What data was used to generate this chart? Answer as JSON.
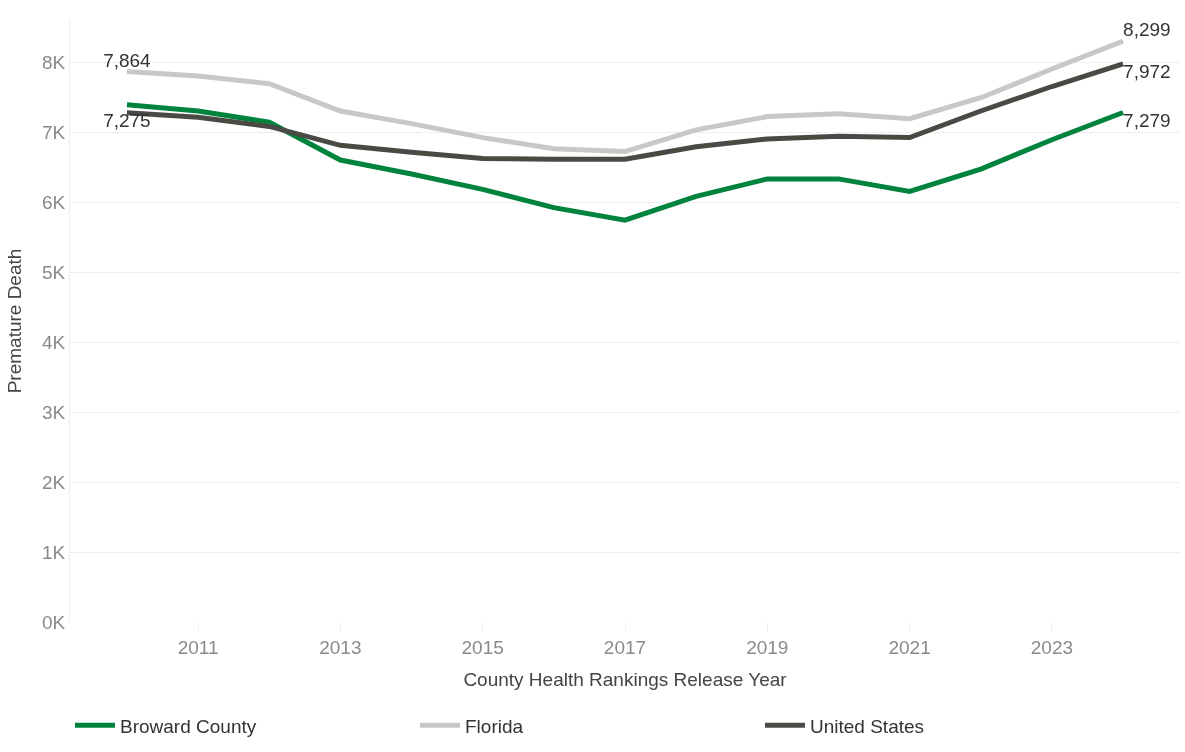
{
  "chart_data": {
    "type": "line",
    "xlabel": "County Health Rankings Release Year",
    "ylabel": "Premature Death",
    "x": [
      2010,
      2011,
      2012,
      2013,
      2014,
      2015,
      2016,
      2017,
      2018,
      2019,
      2020,
      2021,
      2022,
      2023,
      2024
    ],
    "xlim": [
      2009.2,
      2024.8
    ],
    "xticks": [
      2011,
      2013,
      2015,
      2017,
      2019,
      2021,
      2023
    ],
    "ylim": [
      0,
      8600
    ],
    "yticks": [
      {
        "value": 0,
        "label": "0K"
      },
      {
        "value": 1000,
        "label": "1K"
      },
      {
        "value": 2000,
        "label": "2K"
      },
      {
        "value": 3000,
        "label": "3K"
      },
      {
        "value": 4000,
        "label": "4K"
      },
      {
        "value": 5000,
        "label": "5K"
      },
      {
        "value": 6000,
        "label": "6K"
      },
      {
        "value": 7000,
        "label": "7K"
      },
      {
        "value": 8000,
        "label": "8K"
      }
    ],
    "grid": "y",
    "legend": "bottom",
    "marker": "none",
    "line_style": "solid",
    "series": [
      {
        "name": "Broward County",
        "color": "#00843d",
        "values": [
          7390,
          7300,
          7140,
          6600,
          6400,
          6180,
          5920,
          5740,
          6080,
          6330,
          6330,
          6150,
          6470,
          6890,
          7279
        ],
        "value_labels": [
          null,
          null,
          null,
          null,
          null,
          null,
          null,
          null,
          null,
          null,
          null,
          null,
          null,
          null,
          "7,279"
        ]
      },
      {
        "name": "Florida",
        "color": "#c8c9c7",
        "values": [
          7864,
          7800,
          7690,
          7300,
          7120,
          6920,
          6760,
          6720,
          7030,
          7220,
          7260,
          7190,
          7490,
          7900,
          8299
        ],
        "value_labels": [
          "7,864",
          null,
          null,
          null,
          null,
          null,
          null,
          null,
          null,
          null,
          null,
          null,
          null,
          null,
          "8,299"
        ]
      },
      {
        "name": "United States",
        "color": "#4a4a45",
        "values": [
          7275,
          7210,
          7080,
          6810,
          6710,
          6620,
          6610,
          6610,
          6790,
          6900,
          6940,
          6920,
          7300,
          7650,
          7972
        ],
        "value_labels": [
          "7,275",
          null,
          null,
          null,
          null,
          null,
          null,
          null,
          null,
          null,
          null,
          null,
          null,
          null,
          "7,972"
        ]
      }
    ]
  }
}
